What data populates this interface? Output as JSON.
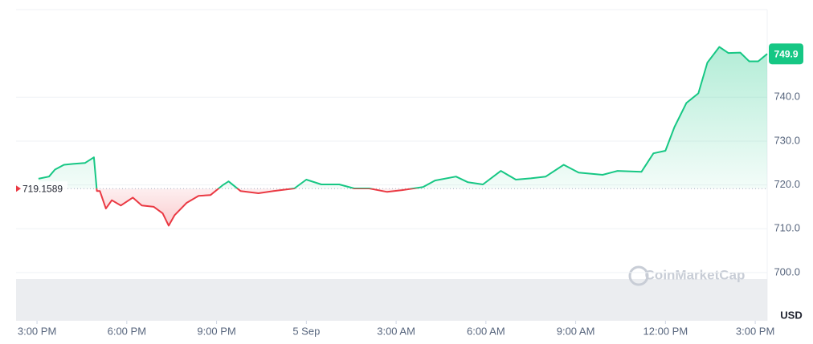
{
  "chart_data": {
    "type": "line",
    "x": [
      0.05,
      0.4,
      0.6,
      0.9,
      1.2,
      1.6,
      1.9,
      2.0,
      2.1,
      2.3,
      2.5,
      2.8,
      3.2,
      3.5,
      3.9,
      4.2,
      4.4,
      4.6,
      5.0,
      5.4,
      5.8,
      6.2,
      6.4,
      6.8,
      7.4,
      7.9,
      8.6,
      9.0,
      9.5,
      10.1,
      10.6,
      11.1,
      11.7,
      12.2,
      12.9,
      13.3,
      14.0,
      14.4,
      14.9,
      15.5,
      16.0,
      16.5,
      17.0,
      17.6,
      18.1,
      18.9,
      19.4,
      20.2,
      20.6,
      21.0,
      21.3,
      21.7,
      22.1,
      22.4,
      22.8,
      23.1,
      23.5,
      23.8,
      24.1,
      24.4
    ],
    "values": [
      721.4,
      721.9,
      723.5,
      724.6,
      724.8,
      725.0,
      726.3,
      718.6,
      718.6,
      714.6,
      716.5,
      715.3,
      717.1,
      715.3,
      715.0,
      713.5,
      710.7,
      713.1,
      715.9,
      717.5,
      717.7,
      719.9,
      720.8,
      718.6,
      718.1,
      718.6,
      719.2,
      721.2,
      720.1,
      720.1,
      719.2,
      719.2,
      718.4,
      718.8,
      719.5,
      721.0,
      721.9,
      720.6,
      720.1,
      723.2,
      721.2,
      721.5,
      721.9,
      724.6,
      722.8,
      722.3,
      723.2,
      723.0,
      727.2,
      727.8,
      733.2,
      738.7,
      740.9,
      747.9,
      751.5,
      750.1,
      750.2,
      748.2,
      748.2,
      749.9
    ],
    "up_color": "#16c784",
    "down_color": "#ea3943",
    "baseline": 719.1589,
    "last_price": 749.9,
    "xlim": [
      -0.7,
      24.4
    ],
    "xticks": [
      {
        "value": 0,
        "label": "3:00 PM"
      },
      {
        "value": 3,
        "label": "6:00 PM"
      },
      {
        "value": 6,
        "label": "9:00 PM"
      },
      {
        "value": 9,
        "label": "5 Sep"
      },
      {
        "value": 12,
        "label": "3:00 AM"
      },
      {
        "value": 15,
        "label": "6:00 AM"
      },
      {
        "value": 18,
        "label": "9:00 AM"
      },
      {
        "value": 21,
        "label": "12:00 PM"
      },
      {
        "value": 24,
        "label": "3:00 PM"
      }
    ],
    "ylim": [
      689,
      760
    ],
    "yticks": [
      {
        "value": 700,
        "label": "700.0"
      },
      {
        "value": 710,
        "label": "710.0"
      },
      {
        "value": 720,
        "label": "720.0"
      },
      {
        "value": 730,
        "label": "730.0"
      },
      {
        "value": 740,
        "label": "740.0"
      }
    ],
    "y_unit": "USD",
    "watermark": "CoinMarketCap",
    "grid": true
  }
}
